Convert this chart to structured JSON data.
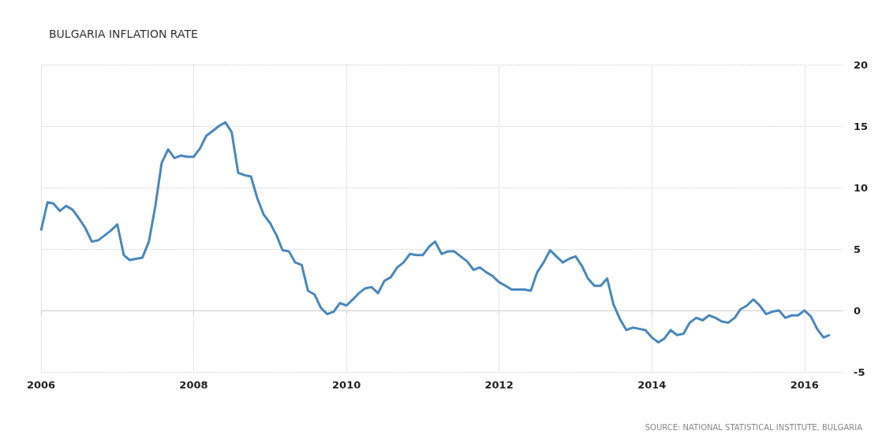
{
  "chart_data": {
    "type": "line",
    "title": "BULGARIA INFLATION RATE",
    "annotations": [
      "SOURCE: NATIONAL STATISTICAL INSTITUTE, BULGARIA"
    ],
    "x": [
      "2006-01",
      "2006-02",
      "2006-03",
      "2006-04",
      "2006-05",
      "2006-06",
      "2006-07",
      "2006-08",
      "2006-09",
      "2006-10",
      "2006-11",
      "2006-12",
      "2007-01",
      "2007-02",
      "2007-03",
      "2007-04",
      "2007-05",
      "2007-06",
      "2007-07",
      "2007-08",
      "2007-09",
      "2007-10",
      "2007-11",
      "2007-12",
      "2008-01",
      "2008-02",
      "2008-03",
      "2008-04",
      "2008-05",
      "2008-06",
      "2008-07",
      "2008-08",
      "2008-09",
      "2008-10",
      "2008-11",
      "2008-12",
      "2009-01",
      "2009-02",
      "2009-03",
      "2009-04",
      "2009-05",
      "2009-06",
      "2009-07",
      "2009-08",
      "2009-09",
      "2009-10",
      "2009-11",
      "2009-12",
      "2010-01",
      "2010-02",
      "2010-03",
      "2010-04",
      "2010-05",
      "2010-06",
      "2010-07",
      "2010-08",
      "2010-09",
      "2010-10",
      "2010-11",
      "2010-12",
      "2011-01",
      "2011-02",
      "2011-03",
      "2011-04",
      "2011-05",
      "2011-06",
      "2011-07",
      "2011-08",
      "2011-09",
      "2011-10",
      "2011-11",
      "2011-12",
      "2012-01",
      "2012-02",
      "2012-03",
      "2012-04",
      "2012-05",
      "2012-06",
      "2012-07",
      "2012-08",
      "2012-09",
      "2012-10",
      "2012-11",
      "2012-12",
      "2013-01",
      "2013-02",
      "2013-03",
      "2013-04",
      "2013-05",
      "2013-06",
      "2013-07",
      "2013-08",
      "2013-09",
      "2013-10",
      "2013-11",
      "2013-12",
      "2014-01",
      "2014-02",
      "2014-03",
      "2014-04",
      "2014-05",
      "2014-06",
      "2014-07",
      "2014-08",
      "2014-09",
      "2014-10",
      "2014-11",
      "2014-12",
      "2015-01",
      "2015-02",
      "2015-03",
      "2015-04",
      "2015-05",
      "2015-06",
      "2015-07",
      "2015-08",
      "2015-09",
      "2015-10",
      "2015-11",
      "2015-12",
      "2016-01",
      "2016-02",
      "2016-03",
      "2016-04",
      "2016-05"
    ],
    "series": [
      {
        "color": "#4a87bd",
        "values": [
          6.5,
          8.8,
          8.7,
          8.1,
          8.5,
          8.2,
          7.5,
          6.7,
          5.6,
          5.7,
          6.1,
          6.5,
          7.0,
          4.5,
          4.1,
          4.2,
          4.3,
          5.6,
          8.4,
          12.0,
          13.1,
          12.4,
          12.6,
          12.5,
          12.5,
          13.2,
          14.2,
          14.6,
          15.0,
          15.3,
          14.5,
          11.2,
          11.0,
          10.9,
          9.1,
          7.8,
          7.1,
          6.1,
          4.9,
          4.8,
          3.9,
          3.7,
          1.6,
          1.3,
          0.2,
          -0.3,
          -0.1,
          0.6,
          0.4,
          0.9,
          1.4,
          1.8,
          1.9,
          1.4,
          2.4,
          2.7,
          3.5,
          3.9,
          4.6,
          4.5,
          4.5,
          5.2,
          5.6,
          4.6,
          4.8,
          4.8,
          4.4,
          4.0,
          3.3,
          3.5,
          3.1,
          2.8,
          2.3,
          2.0,
          1.7,
          1.7,
          1.7,
          1.6,
          3.1,
          3.9,
          4.9,
          4.4,
          3.9,
          4.2,
          4.4,
          3.6,
          2.6,
          2.0,
          2.0,
          2.6,
          0.5,
          -0.7,
          -1.6,
          -1.4,
          -1.5,
          -1.6,
          -2.2,
          -2.6,
          -2.3,
          -1.6,
          -2.0,
          -1.9,
          -1.0,
          -0.6,
          -0.8,
          -0.4,
          -0.6,
          -0.9,
          -1.0,
          -0.6,
          0.1,
          0.4,
          0.9,
          0.4,
          -0.3,
          -0.1,
          0.0,
          -0.6,
          -0.4,
          -0.4,
          0.0,
          -0.5,
          -1.5,
          -2.2,
          -2.0
        ]
      }
    ],
    "xlim": [
      "2006-01",
      "2016-07"
    ],
    "xticks": [
      "2006",
      "2008",
      "2010",
      "2012",
      "2014",
      "2016"
    ],
    "ylim": [
      -5,
      20
    ],
    "yticks": [
      -5,
      0,
      5,
      10,
      15,
      20
    ],
    "grid": true,
    "marker": "none"
  }
}
